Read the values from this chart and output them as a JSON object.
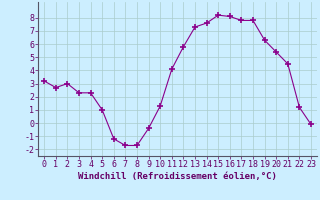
{
  "x": [
    0,
    1,
    2,
    3,
    4,
    5,
    6,
    7,
    8,
    9,
    10,
    11,
    12,
    13,
    14,
    15,
    16,
    17,
    18,
    19,
    20,
    21,
    22,
    23
  ],
  "y": [
    3.2,
    2.7,
    3.0,
    2.3,
    2.3,
    1.0,
    -1.2,
    -1.7,
    -1.7,
    -0.4,
    1.3,
    4.1,
    5.8,
    7.3,
    7.6,
    8.2,
    8.1,
    7.8,
    7.8,
    6.3,
    5.4,
    4.5,
    1.2,
    -0.1
  ],
  "line_color": "#8B008B",
  "marker": "+",
  "marker_size": 4,
  "bg_color": "#cceeff",
  "grid_color": "#aacccc",
  "xlabel": "Windchill (Refroidissement éolien,°C)",
  "xlabel_fontsize": 6.5,
  "tick_fontsize": 6.0,
  "ylim": [
    -2.5,
    9.2
  ],
  "xlim": [
    -0.5,
    23.5
  ],
  "yticks": [
    -2,
    -1,
    0,
    1,
    2,
    3,
    4,
    5,
    6,
    7,
    8
  ],
  "xticks": [
    0,
    1,
    2,
    3,
    4,
    5,
    6,
    7,
    8,
    9,
    10,
    11,
    12,
    13,
    14,
    15,
    16,
    17,
    18,
    19,
    20,
    21,
    22,
    23
  ]
}
